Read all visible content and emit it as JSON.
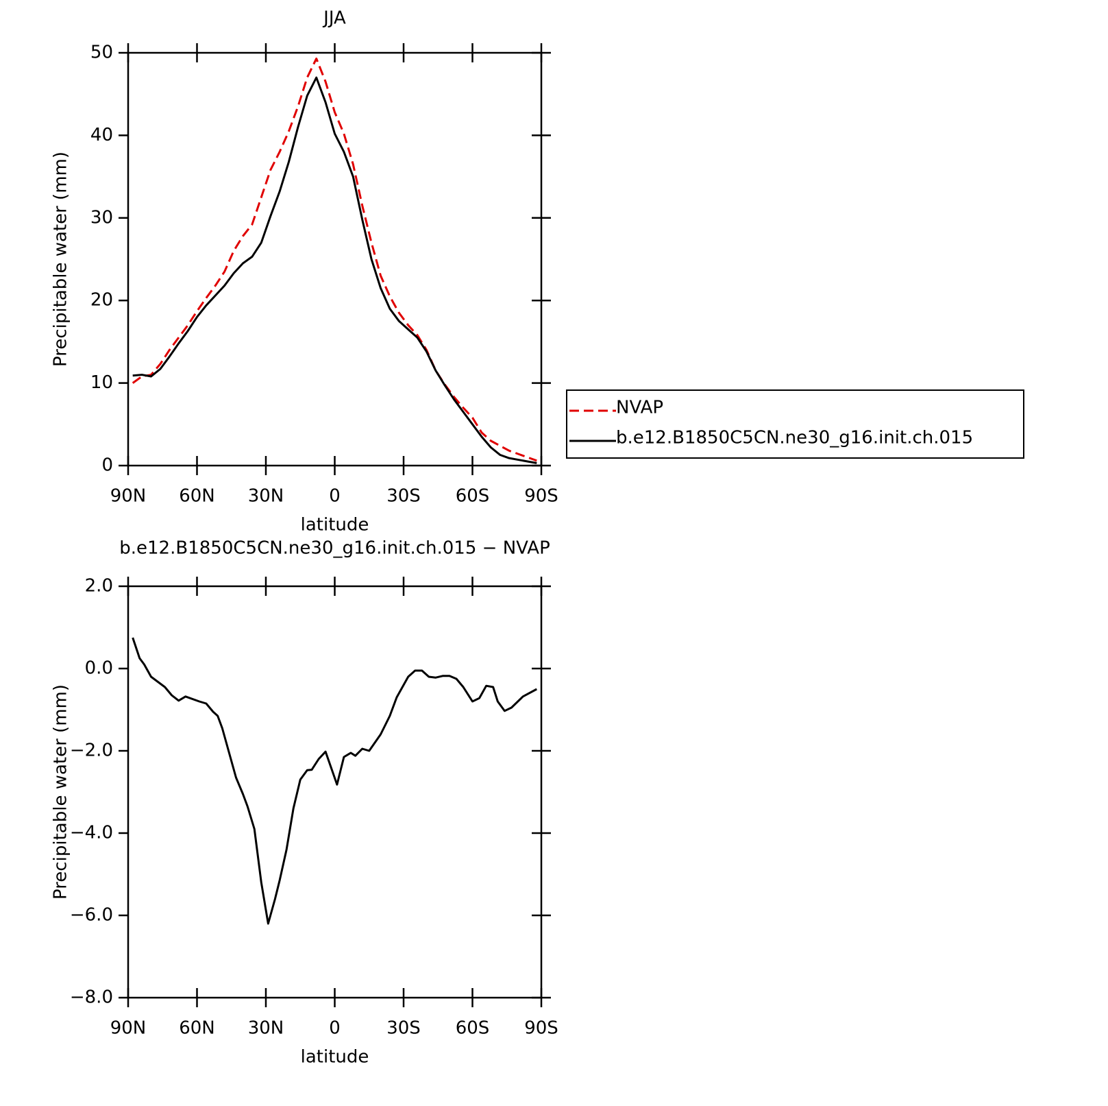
{
  "chart_data": [
    {
      "type": "line",
      "title": "JJA",
      "xlabel": "latitude",
      "ylabel": "Precipitable water (mm)",
      "x": [
        88,
        84,
        80,
        76,
        72,
        68,
        64,
        60,
        56,
        52,
        48,
        44,
        40,
        36,
        32,
        28,
        24,
        20,
        16,
        12,
        8,
        4,
        0,
        -4,
        -8,
        -12,
        -16,
        -20,
        -24,
        -28,
        -32,
        -36,
        -40,
        -44,
        -48,
        -52,
        -56,
        -60,
        -64,
        -68,
        -72,
        -76,
        -80,
        -84,
        -88
      ],
      "series": [
        {
          "name": "NVAP",
          "color": "#e00000",
          "line_style": "dashed",
          "values": [
            10,
            10.8,
            11,
            12.3,
            14,
            15.5,
            17,
            18.7,
            20.3,
            21.8,
            23.5,
            26,
            27.8,
            29.2,
            32.5,
            35.8,
            38,
            40.5,
            43.5,
            47,
            49.3,
            46.5,
            42.8,
            40.2,
            36.5,
            31.5,
            27,
            23,
            20.5,
            18.5,
            17,
            15.8,
            14,
            11.5,
            9.8,
            8.3,
            7,
            5.8,
            4,
            3,
            2.4,
            1.8,
            1.4,
            1,
            0.6
          ]
        },
        {
          "name": "b.e12.B1850C5CN.ne30_g16.init.ch.015",
          "color": "#000000",
          "line_style": "solid",
          "values": [
            10.9,
            11,
            10.8,
            11.7,
            13.2,
            14.8,
            16.3,
            18,
            19.4,
            20.6,
            21.8,
            23.3,
            24.5,
            25.3,
            27,
            30.2,
            33.2,
            36.8,
            41,
            44.8,
            47,
            44,
            40.2,
            38,
            35,
            29.8,
            25,
            21.5,
            19,
            17.5,
            16.5,
            15.5,
            13.8,
            11.5,
            9.7,
            8,
            6.5,
            5,
            3.5,
            2.2,
            1.3,
            0.9,
            0.7,
            0.5,
            0.3
          ]
        }
      ],
      "xlim": [
        90,
        -90
      ],
      "xticks": [
        {
          "value": 90,
          "label": "90N"
        },
        {
          "value": 60,
          "label": "60N"
        },
        {
          "value": 30,
          "label": "30N"
        },
        0,
        {
          "value": -30,
          "label": "30S"
        },
        {
          "value": -60,
          "label": "60S"
        },
        {
          "value": -90,
          "label": "90S"
        }
      ],
      "ylim": [
        0,
        50
      ],
      "yticks": [
        0,
        10,
        20,
        30,
        40,
        50
      ],
      "legend": "right"
    },
    {
      "type": "line",
      "title": "b.e12.B1850C5CN.ne30_g16.init.ch.015 − NVAP",
      "xlabel": "latitude",
      "ylabel": "Precipitable water (mm)",
      "x": [
        88,
        85,
        83,
        80,
        74,
        71,
        68,
        65,
        59,
        56,
        53,
        51,
        49,
        43,
        40,
        38,
        35,
        32,
        29,
        26,
        24,
        21,
        18,
        15,
        12,
        10,
        7,
        4,
        1,
        -1,
        -4,
        -7,
        -9,
        -12,
        -15,
        -20,
        -24,
        -27,
        -32,
        -35,
        -38,
        -41,
        -44,
        -47,
        -50,
        -53,
        -56,
        -60,
        -63,
        -66,
        -69,
        -71,
        -74,
        -77,
        -82,
        -88
      ],
      "series": [
        {
          "name": null,
          "color": "#000000",
          "line_style": "solid",
          "values": [
            0.75,
            0.25,
            0.1,
            -0.2,
            -0.45,
            -0.65,
            -0.78,
            -0.68,
            -0.8,
            -0.85,
            -1.05,
            -1.15,
            -1.45,
            -2.65,
            -3.05,
            -3.35,
            -3.9,
            -5.2,
            -6.2,
            -5.6,
            -5.15,
            -4.4,
            -3.4,
            -2.7,
            -2.47,
            -2.46,
            -2.2,
            -2.02,
            -2.5,
            -2.82,
            -2.15,
            -2.05,
            -2.12,
            -1.95,
            -2.0,
            -1.6,
            -1.15,
            -0.7,
            -0.2,
            -0.05,
            -0.05,
            -0.2,
            -0.22,
            -0.18,
            -0.18,
            -0.25,
            -0.45,
            -0.8,
            -0.72,
            -0.42,
            -0.45,
            -0.8,
            -1.03,
            -0.95,
            -0.68,
            -0.5
          ]
        }
      ],
      "xlim": [
        90,
        -90
      ],
      "xticks": [
        {
          "value": 90,
          "label": "90N"
        },
        {
          "value": 60,
          "label": "60N"
        },
        {
          "value": 30,
          "label": "30N"
        },
        0,
        {
          "value": -30,
          "label": "30S"
        },
        {
          "value": -60,
          "label": "60S"
        },
        {
          "value": -90,
          "label": "90S"
        }
      ],
      "ylim": [
        -8,
        2
      ],
      "yticks": [
        {
          "value": -8,
          "label": "−8.0"
        },
        {
          "value": -6,
          "label": "−6.0"
        },
        {
          "value": -4,
          "label": "−4.0"
        },
        {
          "value": -2,
          "label": "−2.0"
        },
        {
          "value": 0,
          "label": "0.0"
        },
        {
          "value": 2,
          "label": "2.0"
        }
      ]
    }
  ]
}
